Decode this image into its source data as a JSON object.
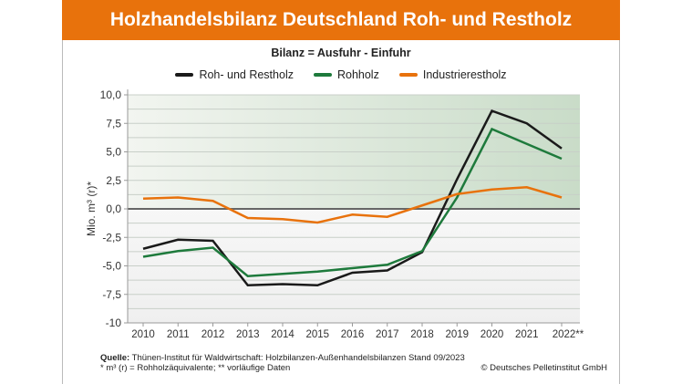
{
  "header": {
    "title": "Holzhandelsbilanz Deutschland Roh- und Restholz"
  },
  "chart_data": {
    "type": "line",
    "title": "Holzhandelsbilanz Deutschland Roh- und Restholz",
    "subtitle": "Bilanz = Ausfuhr - Einfuhr",
    "ylabel": "Mio. m³ (r)*",
    "xlabel": "",
    "ylim": [
      -10,
      10
    ],
    "yticks": [
      "10,0",
      "7,5",
      "5,0",
      "2,5",
      "0,0",
      "-2,5",
      "-5,0",
      "-7,5",
      "-10"
    ],
    "ytick_values": [
      10,
      7.5,
      5,
      2.5,
      0,
      -2.5,
      -5,
      -7.5,
      -10
    ],
    "categories": [
      "2010",
      "2011",
      "2012",
      "2013",
      "2014",
      "2015",
      "2016",
      "2017",
      "2018",
      "2019",
      "2020",
      "2021",
      "2022**"
    ],
    "grid": true,
    "legend": "top",
    "series": [
      {
        "name": "Roh- und Restholz",
        "color": "#1a1a1a",
        "values": [
          -3.5,
          -2.7,
          -2.8,
          -6.7,
          -6.6,
          -6.7,
          -5.6,
          -5.4,
          -3.8,
          2.6,
          8.6,
          7.5,
          5.3
        ]
      },
      {
        "name": "Rohholz",
        "color": "#1e7a3c",
        "values": [
          -4.2,
          -3.7,
          -3.4,
          -5.9,
          -5.7,
          -5.5,
          -5.2,
          -4.9,
          -3.7,
          1.0,
          7.0,
          5.7,
          4.4
        ]
      },
      {
        "name": "Industrierestholz",
        "color": "#e8720c",
        "values": [
          0.9,
          1.0,
          0.7,
          -0.8,
          -0.9,
          -1.2,
          -0.5,
          -0.7,
          0.3,
          1.3,
          1.7,
          1.9,
          1.0
        ]
      }
    ]
  },
  "footer": {
    "source_label": "Quelle:",
    "source_text": " Thünen-Institut für Waldwirtschaft: Holzbilanzen-Außenhandelsbilanzen Stand 09/2023",
    "note": "* m³ (r) = Rohholzäquivalente; ** vorläufige Daten",
    "copyright": "© Deutsches Pelletinstitut GmbH"
  }
}
